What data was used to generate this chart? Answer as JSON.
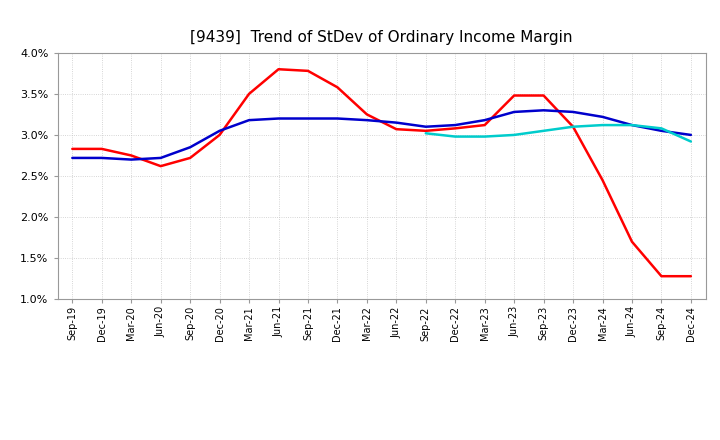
{
  "title": "[9439]  Trend of StDev of Ordinary Income Margin",
  "title_fontsize": 11,
  "ylim": [
    0.01,
    0.04
  ],
  "yticks": [
    0.01,
    0.015,
    0.02,
    0.025,
    0.03,
    0.035,
    0.04
  ],
  "ytick_labels": [
    "1.0%",
    "1.5%",
    "2.0%",
    "2.5%",
    "3.0%",
    "3.5%",
    "4.0%"
  ],
  "xtick_labels": [
    "Sep-19",
    "Dec-19",
    "Mar-20",
    "Jun-20",
    "Sep-20",
    "Dec-20",
    "Mar-21",
    "Jun-21",
    "Sep-21",
    "Dec-21",
    "Mar-22",
    "Jun-22",
    "Sep-22",
    "Dec-22",
    "Mar-23",
    "Jun-23",
    "Sep-23",
    "Dec-23",
    "Mar-24",
    "Jun-24",
    "Sep-24",
    "Dec-24"
  ],
  "line_3y": {
    "color": "#FF0000",
    "values": [
      0.0283,
      0.0283,
      0.0275,
      0.0262,
      0.0272,
      0.03,
      0.035,
      0.038,
      0.0378,
      0.0358,
      0.0325,
      0.0307,
      0.0305,
      0.0308,
      0.0312,
      0.0348,
      0.0348,
      0.031,
      0.0245,
      0.017,
      0.0128,
      0.0128
    ]
  },
  "line_5y": {
    "color": "#0000CC",
    "values": [
      0.0272,
      0.0272,
      0.027,
      0.0272,
      0.0285,
      0.0305,
      0.0318,
      0.032,
      0.032,
      0.032,
      0.0318,
      0.0315,
      0.031,
      0.0312,
      0.0318,
      0.0328,
      0.033,
      0.0328,
      0.0322,
      0.0312,
      0.0305,
      0.03
    ]
  },
  "line_7y": {
    "color": "#00CCCC",
    "values": [
      null,
      null,
      null,
      null,
      null,
      null,
      null,
      null,
      null,
      null,
      null,
      null,
      0.0302,
      0.0298,
      0.0298,
      0.03,
      0.0305,
      0.031,
      0.0312,
      0.0312,
      0.0308,
      0.0292
    ]
  },
  "line_10y": {
    "color": "#008000",
    "values": [
      null,
      null,
      null,
      null,
      null,
      null,
      null,
      null,
      null,
      null,
      null,
      null,
      null,
      null,
      null,
      null,
      null,
      null,
      null,
      null,
      null,
      null
    ]
  },
  "background_color": "#FFFFFF",
  "grid_color": "#BBBBBB",
  "linewidth": 1.8
}
